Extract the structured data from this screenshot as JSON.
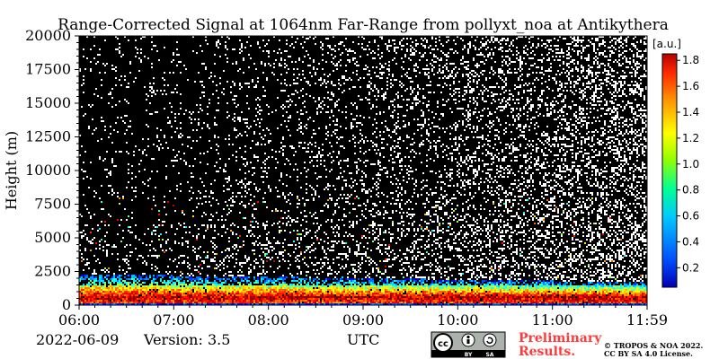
{
  "chart_data": {
    "type": "heatmap",
    "title": "Range-Corrected Signal at 1064nm Far-Range from pollyxt_noa at Antikythera",
    "ylabel": "Height (m)",
    "xlabel": "UTC",
    "xticks": [
      "06:00",
      "07:00",
      "08:00",
      "09:00",
      "10:00",
      "11:00",
      "11:59"
    ],
    "x_range_hours": [
      6.0,
      11.983
    ],
    "yticks": [
      "0",
      "2500",
      "5000",
      "7500",
      "10000",
      "12500",
      "15000",
      "17500",
      "20000"
    ],
    "ylim": [
      0,
      20000
    ],
    "colorbar": {
      "unit": "[a.u.]",
      "ticks": [
        "0.2",
        "0.4",
        "0.6",
        "0.8",
        "1.0",
        "1.2",
        "1.4",
        "1.6",
        "1.8"
      ],
      "range": [
        0.05,
        1.85
      ],
      "colormap": "jet"
    },
    "aerosol_layer": {
      "dense_top_m": 1500,
      "top_m_at_start": 2300,
      "top_m_at_end": 1700,
      "peak_signal_height_m": 600,
      "peak_signal_value": 1.8
    },
    "background": "noise (white dots on black) above the aerosol layer"
  },
  "footer": {
    "date": "2022-06-09",
    "version": "Version: 3.5",
    "utc": "UTC",
    "preliminary_line1": "Preliminary",
    "preliminary_line2": "Results.",
    "copyright_line1": "© TROPOS & NOA 2022.",
    "copyright_line2": "CC BY SA 4.0 License.",
    "license_badge": {
      "icon": "cc-icon",
      "icon_text": "cc",
      "by": "BY",
      "sa": "SA"
    }
  }
}
